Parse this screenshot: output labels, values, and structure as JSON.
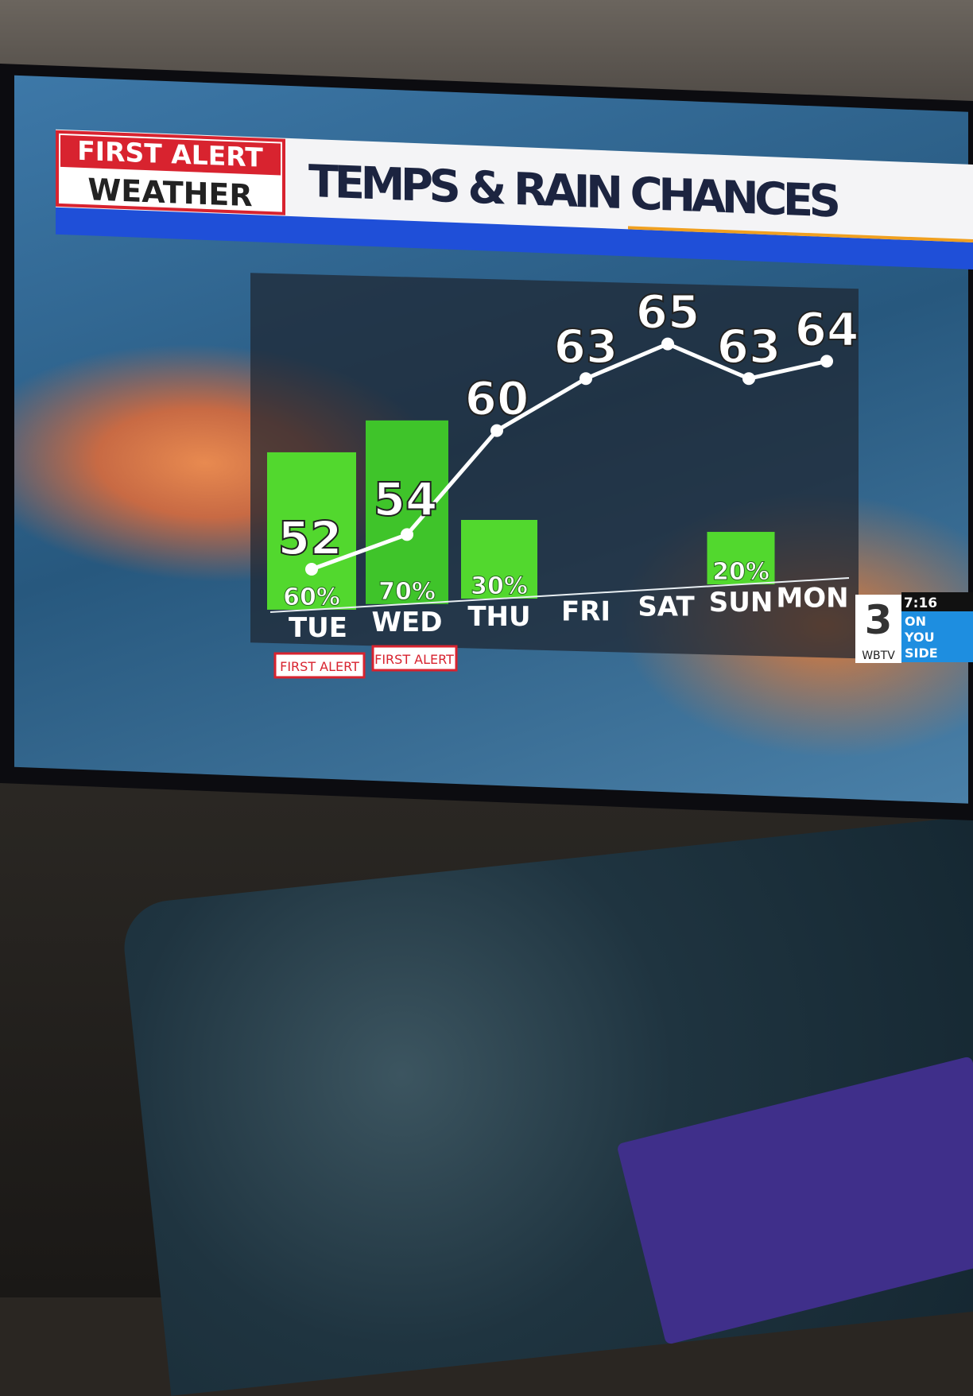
{
  "logo": {
    "line1": "FIRST ALERT",
    "line2": "WEATHER"
  },
  "header": {
    "title": "TEMPS & RAIN CHANCES"
  },
  "badges": [
    "FIRST ALERT",
    "FIRST ALERT"
  ],
  "station": {
    "clock": "7:16",
    "name": "WBTV",
    "slogan_line1": "ON",
    "slogan_line2": "YOU",
    "slogan_line3": "SIDE"
  },
  "colors": {
    "bar": "#4fd02a",
    "line": "#ffffff",
    "header_blue": "#1f4fd8",
    "logo_red": "#d8232f"
  },
  "chart_data": {
    "type": "bar+line",
    "title": "TEMPS & RAIN CHANCES",
    "categories": [
      "TUE",
      "WED",
      "THU",
      "FRI",
      "SAT",
      "SUN",
      "MON"
    ],
    "series": [
      {
        "kind": "bar",
        "values": [
          60,
          70,
          30,
          0,
          0,
          20,
          0
        ],
        "labels": [
          "60%",
          "70%",
          "30%",
          "",
          "",
          "20%",
          ""
        ]
      },
      {
        "kind": "line",
        "values": [
          52,
          54,
          60,
          63,
          65,
          63,
          64
        ]
      }
    ]
  }
}
